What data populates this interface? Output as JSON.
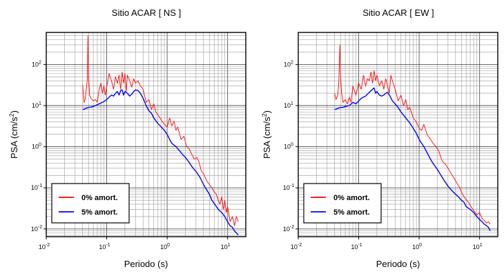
{
  "chart_data": [
    {
      "type": "line",
      "title": "Sitio ACAR [ NS ]",
      "xlabel": "Periodo (s)",
      "ylabel_base": "PSA (cm/s",
      "ylabel_sup": "2",
      "ylabel_close": ")",
      "xscale": "log",
      "yscale": "log",
      "xlim": [
        0.01,
        20
      ],
      "ylim": [
        0.0065,
        600
      ],
      "grid": true,
      "legend_position": "bottom-left",
      "x_ticks": [
        {
          "value": 0.01,
          "base": "10",
          "exp": "-2"
        },
        {
          "value": 0.1,
          "base": "10",
          "exp": "-1"
        },
        {
          "value": 1,
          "base": "10",
          "exp": "0"
        },
        {
          "value": 10,
          "base": "10",
          "exp": "1"
        }
      ],
      "y_ticks": [
        {
          "value": 0.01,
          "base": "10",
          "exp": "-2"
        },
        {
          "value": 0.1,
          "base": "10",
          "exp": "-1"
        },
        {
          "value": 1,
          "base": "10",
          "exp": "0"
        },
        {
          "value": 10,
          "base": "10",
          "exp": "1"
        },
        {
          "value": 100,
          "base": "10",
          "exp": "2"
        }
      ],
      "series": [
        {
          "name": "0% amort.",
          "color": "#ff0000",
          "x": [
            0.04,
            0.042,
            0.044,
            0.046,
            0.048,
            0.049,
            0.05,
            0.052,
            0.055,
            0.06,
            0.065,
            0.07,
            0.075,
            0.08,
            0.085,
            0.09,
            0.095,
            0.1,
            0.11,
            0.12,
            0.13,
            0.14,
            0.15,
            0.16,
            0.17,
            0.18,
            0.19,
            0.2,
            0.21,
            0.22,
            0.24,
            0.26,
            0.28,
            0.3,
            0.33,
            0.36,
            0.4,
            0.45,
            0.5,
            0.55,
            0.6,
            0.65,
            0.7,
            0.8,
            0.9,
            1.0,
            1.1,
            1.2,
            1.3,
            1.4,
            1.5,
            1.7,
            1.9,
            2.1,
            2.3,
            2.5,
            2.8,
            3.1,
            3.4,
            3.7,
            4.0,
            4.5,
            5.0,
            5.5,
            6.0,
            6.5,
            7.0,
            7.5,
            8.0,
            8.5,
            9.0,
            9.5,
            10.0,
            11.0,
            12.0,
            13.0,
            14.0,
            15.0
          ],
          "y": [
            32,
            12,
            14,
            25,
            45,
            500,
            60,
            18,
            15,
            13,
            14,
            12,
            25,
            35,
            20,
            30,
            18,
            28,
            60,
            40,
            25,
            50,
            35,
            55,
            25,
            65,
            35,
            60,
            22,
            55,
            40,
            28,
            45,
            35,
            40,
            30,
            25,
            12,
            14,
            8,
            11,
            7,
            6,
            4.5,
            3.5,
            3.0,
            5.0,
            3.2,
            4.2,
            2.5,
            3.0,
            1.5,
            1.8,
            1.0,
            0.9,
            0.7,
            0.5,
            0.55,
            0.4,
            0.25,
            0.22,
            0.15,
            0.12,
            0.1,
            0.08,
            0.07,
            0.05,
            0.04,
            0.06,
            0.03,
            0.05,
            0.025,
            0.035,
            0.015,
            0.02,
            0.012,
            0.02,
            0.015
          ]
        },
        {
          "name": "5% amort.",
          "color": "#0000ff",
          "x": [
            0.04,
            0.045,
            0.05,
            0.055,
            0.06,
            0.07,
            0.08,
            0.09,
            0.1,
            0.11,
            0.12,
            0.13,
            0.14,
            0.15,
            0.16,
            0.17,
            0.18,
            0.19,
            0.2,
            0.22,
            0.24,
            0.26,
            0.28,
            0.3,
            0.33,
            0.36,
            0.4,
            0.45,
            0.5,
            0.55,
            0.6,
            0.7,
            0.8,
            0.9,
            1.0,
            1.1,
            1.2,
            1.4,
            1.6,
            1.8,
            2.0,
            2.3,
            2.6,
            3.0,
            3.5,
            4.0,
            4.5,
            5.0,
            5.5,
            6.0,
            7.0,
            8.0,
            9.0,
            10.0,
            11.0,
            12.0,
            13.0,
            14.0,
            15.0
          ],
          "y": [
            8.0,
            8.5,
            9.0,
            9.2,
            9.5,
            10.5,
            11.5,
            12.5,
            14,
            16,
            18,
            17,
            20,
            22,
            18,
            23,
            24,
            18,
            22,
            20,
            17,
            19,
            22,
            24,
            23,
            20,
            15,
            10,
            7.5,
            6.5,
            5.0,
            3.7,
            3.0,
            2.5,
            2.0,
            1.5,
            1.2,
            1.0,
            0.8,
            0.65,
            0.55,
            0.42,
            0.32,
            0.25,
            0.18,
            0.12,
            0.09,
            0.07,
            0.05,
            0.042,
            0.03,
            0.025,
            0.02,
            0.015,
            0.012,
            0.011,
            0.009,
            0.008,
            0.0072
          ]
        }
      ]
    },
    {
      "type": "line",
      "title": "Sitio ACAR [ EW ]",
      "xlabel": "Periodo (s)",
      "ylabel_base": "PSA (cm/s",
      "ylabel_sup": "2",
      "ylabel_close": ")",
      "xscale": "log",
      "yscale": "log",
      "xlim": [
        0.01,
        20
      ],
      "ylim": [
        0.0065,
        600
      ],
      "grid": true,
      "legend_position": "bottom-left",
      "x_ticks": [
        {
          "value": 0.01,
          "base": "10",
          "exp": "-2"
        },
        {
          "value": 0.1,
          "base": "10",
          "exp": "-1"
        },
        {
          "value": 1,
          "base": "10",
          "exp": "0"
        },
        {
          "value": 10,
          "base": "10",
          "exp": "1"
        }
      ],
      "y_ticks": [
        {
          "value": 0.01,
          "base": "10",
          "exp": "-2"
        },
        {
          "value": 0.1,
          "base": "10",
          "exp": "-1"
        },
        {
          "value": 1,
          "base": "10",
          "exp": "0"
        },
        {
          "value": 10,
          "base": "10",
          "exp": "1"
        },
        {
          "value": 100,
          "base": "10",
          "exp": "2"
        }
      ],
      "series": [
        {
          "name": "0% amort.",
          "color": "#ff0000",
          "x": [
            0.04,
            0.042,
            0.045,
            0.047,
            0.049,
            0.05,
            0.052,
            0.055,
            0.06,
            0.065,
            0.07,
            0.075,
            0.08,
            0.09,
            0.1,
            0.11,
            0.12,
            0.13,
            0.14,
            0.15,
            0.16,
            0.17,
            0.18,
            0.19,
            0.2,
            0.22,
            0.24,
            0.26,
            0.28,
            0.3,
            0.32,
            0.34,
            0.36,
            0.4,
            0.45,
            0.5,
            0.55,
            0.6,
            0.65,
            0.7,
            0.8,
            0.9,
            1.0,
            1.1,
            1.2,
            1.35,
            1.5,
            1.7,
            1.9,
            2.1,
            2.4,
            2.7,
            3.0,
            3.4,
            3.8,
            4.2,
            4.7,
            5.2,
            5.8,
            6.5,
            7.2,
            8.0,
            9.0,
            10.0,
            11.0,
            12.0,
            13.0,
            14.0,
            15.0
          ],
          "y": [
            20,
            14,
            18,
            40,
            300,
            60,
            20,
            12,
            14,
            11,
            16,
            12,
            30,
            18,
            35,
            25,
            55,
            30,
            45,
            40,
            65,
            35,
            70,
            40,
            55,
            30,
            40,
            25,
            45,
            30,
            20,
            55,
            40,
            25,
            13,
            18,
            10,
            14,
            8,
            9,
            5.0,
            4.0,
            2.8,
            2.5,
            3.5,
            2.0,
            1.6,
            1.2,
            1.0,
            0.8,
            0.45,
            0.38,
            0.3,
            0.22,
            0.17,
            0.13,
            0.1,
            0.07,
            0.055,
            0.045,
            0.035,
            0.028,
            0.022,
            0.025,
            0.018,
            0.016,
            0.014,
            0.015,
            0.013
          ]
        },
        {
          "name": "5% amort.",
          "color": "#0000ff",
          "x": [
            0.04,
            0.045,
            0.05,
            0.055,
            0.06,
            0.07,
            0.08,
            0.09,
            0.1,
            0.11,
            0.12,
            0.13,
            0.14,
            0.15,
            0.16,
            0.17,
            0.18,
            0.19,
            0.2,
            0.22,
            0.24,
            0.26,
            0.28,
            0.3,
            0.33,
            0.36,
            0.4,
            0.45,
            0.5,
            0.6,
            0.7,
            0.8,
            0.9,
            1.0,
            1.2,
            1.4,
            1.6,
            1.8,
            2.0,
            2.3,
            2.6,
            3.0,
            3.5,
            4.0,
            4.5,
            5.0,
            5.5,
            6.0,
            7.0,
            8.0,
            9.0,
            10.0,
            11.0,
            12.0,
            13.0,
            14.0,
            15.0
          ],
          "y": [
            8.0,
            8.5,
            9.0,
            9.0,
            9.5,
            10,
            12,
            11,
            13,
            15,
            16,
            17,
            19,
            21,
            23,
            25,
            27,
            20,
            22,
            18,
            17,
            18,
            20,
            21,
            17,
            13,
            11,
            9,
            7.0,
            5.0,
            3.8,
            2.8,
            2.1,
            1.5,
            1.0,
            0.65,
            0.45,
            0.35,
            0.28,
            0.2,
            0.15,
            0.11,
            0.085,
            0.07,
            0.06,
            0.05,
            0.045,
            0.035,
            0.03,
            0.025,
            0.02,
            0.017,
            0.015,
            0.013,
            0.012,
            0.011,
            0.009
          ]
        }
      ]
    }
  ]
}
